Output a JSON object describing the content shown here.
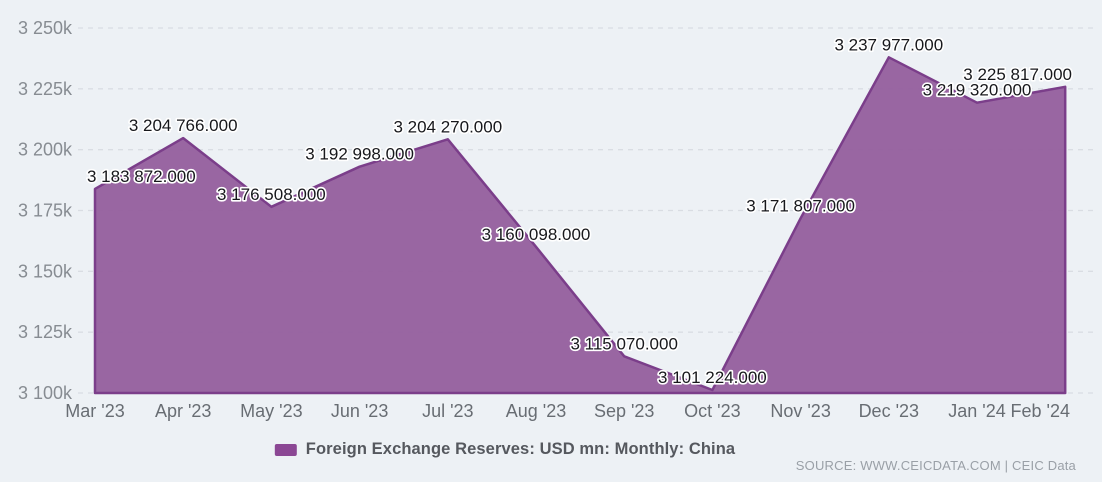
{
  "chart_data": {
    "type": "area",
    "title": "Foreign Exchange Reserves: USD mn: Monthly: China",
    "categories": [
      "Mar '23",
      "Apr '23",
      "May '23",
      "Jun '23",
      "Jul '23",
      "Aug '23",
      "Sep '23",
      "Oct '23",
      "Nov '23",
      "Dec '23",
      "Jan '24",
      "Feb '24"
    ],
    "series": [
      {
        "name": "Foreign Exchange Reserves: USD mn: Monthly: China",
        "values": [
          3183872,
          3204766,
          3176508,
          3192998,
          3204270,
          3160098,
          3115070,
          3101224,
          3171807,
          3237977,
          3219320,
          3225817
        ],
        "point_labels": [
          "3 183 872.000",
          "3 204 766.000",
          "3 176 508.000",
          "3 192 998.000",
          "3 204 270.000",
          "3 160 098.000",
          "3 115 070.000",
          "3 101 224.000",
          "3 171 807.000",
          "3 237 977.000",
          "3 219 320.000",
          "3 225 817.000"
        ]
      }
    ],
    "ylim": [
      3100000,
      3250000
    ],
    "y_tick_step": 25000,
    "y_tick_labels": [
      "3 250k",
      "3 225k",
      "3 200k",
      "3 175k",
      "3 150k",
      "3 125k",
      "3 100k"
    ],
    "xlabel": "",
    "ylabel": "",
    "grid": "dashed-horizontal",
    "legend_position": "bottom-center",
    "colors": {
      "background": "#edf1f5",
      "gridline": "#d9dde3",
      "area_fill": "#96619f",
      "area_stroke": "#7b3e8a",
      "y_axis_text": "#878c92",
      "x_axis_text": "#686d73",
      "data_label": "#17181c",
      "data_label_halo": "#ffffff",
      "legend_swatch": "#8b4794",
      "legend_text": "#55585e",
      "source_text": "#9aa0a7"
    }
  },
  "legend": {
    "label": "Foreign Exchange Reserves: USD mn: Monthly: China"
  },
  "footer": {
    "source_label": "SOURCE: WWW.CEICDATA.COM | CEIC Data"
  }
}
